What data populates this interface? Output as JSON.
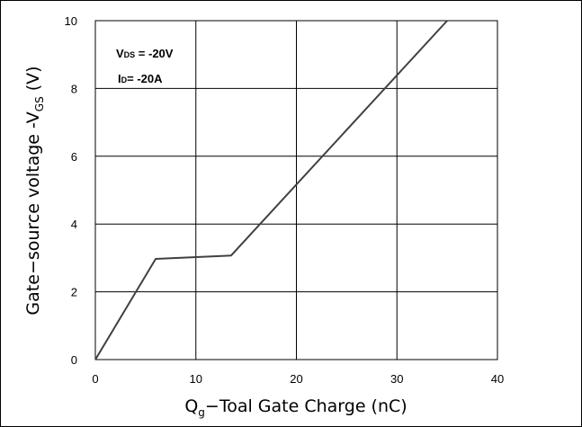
{
  "chart_data": {
    "type": "line",
    "xlabel_main": "Q",
    "xlabel_sub": "g",
    "xlabel_rest": "−Toal Gate Charge  (nC)",
    "ylabel_main": "Gate−source voltage -V",
    "ylabel_sub": "GS",
    "ylabel_rest": " (V)",
    "xlim": [
      0,
      40
    ],
    "ylim": [
      0,
      10
    ],
    "xticks": [
      0,
      10,
      20,
      30,
      40
    ],
    "yticks": [
      0,
      2,
      4,
      6,
      8,
      10
    ],
    "xtick_labels": [
      "0",
      "10",
      "20",
      "30",
      "40"
    ],
    "ytick_labels": [
      "0",
      "2",
      "4",
      "6",
      "8",
      "10"
    ],
    "grid": true,
    "series": [
      {
        "x": [
          0,
          6,
          13.5,
          35
        ],
        "y": [
          0,
          2.97,
          3.07,
          10
        ],
        "color": "#404040"
      }
    ],
    "annotations": {
      "vds": {
        "prefix": "V",
        "sub": "DS",
        "suffix": " = -20V"
      },
      "id": {
        "prefix": "I",
        "sub": "D",
        "suffix": "= -20A"
      }
    }
  }
}
